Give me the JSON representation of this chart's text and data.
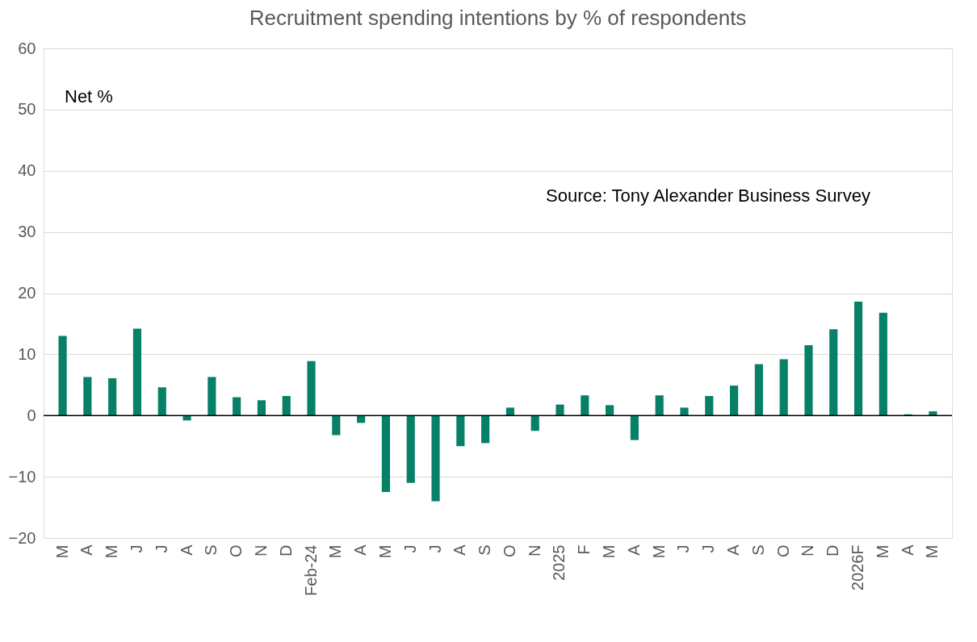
{
  "chart_data": {
    "type": "bar",
    "title": "Recruitment spending intentions by % of respondents",
    "ylabel": "Net %",
    "annotations": [
      "Source: Tony Alexander Business Survey"
    ],
    "categories": [
      "M",
      "A",
      "M",
      "J",
      "J",
      "A",
      "S",
      "O",
      "N",
      "D",
      "Feb-24",
      "M",
      "A",
      "M",
      "J",
      "J",
      "A",
      "S",
      "O",
      "N",
      "2025",
      "F",
      "M",
      "A",
      "M",
      "J",
      "J",
      "A",
      "S",
      "O",
      "N",
      "D",
      "2026F",
      "M",
      "A",
      "M"
    ],
    "series": [
      {
        "color": "#068066",
        "values": [
          13,
          6.3,
          6.1,
          14.2,
          4.6,
          -0.8,
          6.3,
          3.0,
          2.5,
          3.2,
          8.9,
          -3.2,
          -1.2,
          -12.5,
          -11,
          -14,
          -5,
          -4.5,
          1.3,
          -2.5,
          1.8,
          3.3,
          1.7,
          -4,
          3.3,
          1.3,
          3.2,
          4.9,
          8.4,
          9.2,
          11.5,
          14.1,
          18.6,
          16.8,
          0.2,
          0.7
        ]
      }
    ],
    "ylim": [
      -20,
      60
    ],
    "yticks": [
      -20,
      -10,
      0,
      10,
      20,
      30,
      40,
      50,
      60
    ],
    "grid": "y"
  }
}
